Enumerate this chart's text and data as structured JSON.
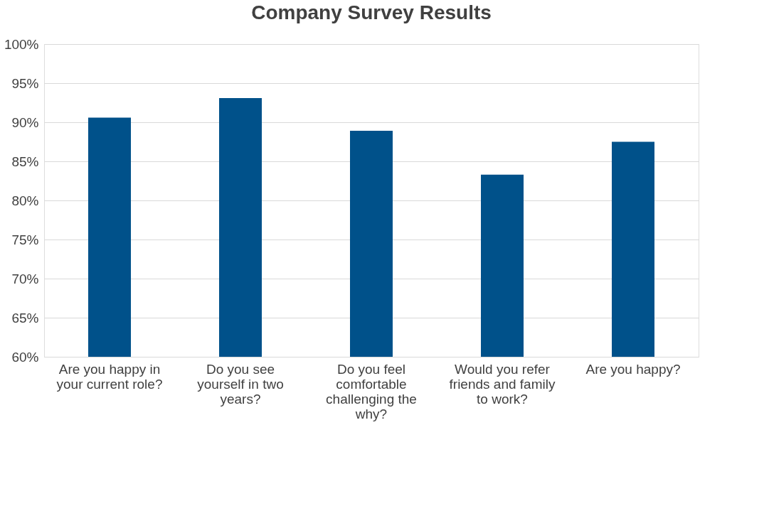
{
  "chart_data": {
    "type": "bar",
    "title": "Company Survey Results",
    "categories": [
      "Are you happy in your current role?",
      "Do you see yourself in two years?",
      "Do you feel comfortable challenging the why?",
      "Would you refer friends and family to work?",
      "Are you happy?"
    ],
    "values": [
      90.6,
      93.1,
      88.9,
      83.3,
      87.5
    ],
    "color": "#00518a",
    "ylim": [
      60,
      100
    ],
    "yticks": [
      {
        "value": 60,
        "label": "60%"
      },
      {
        "value": 65,
        "label": "65%"
      },
      {
        "value": 70,
        "label": "70%"
      },
      {
        "value": 75,
        "label": "75%"
      },
      {
        "value": 80,
        "label": "80%"
      },
      {
        "value": 85,
        "label": "85%"
      },
      {
        "value": 90,
        "label": "90%"
      },
      {
        "value": 95,
        "label": "95%"
      },
      {
        "value": 100,
        "label": "100%"
      }
    ],
    "grid": "y"
  }
}
